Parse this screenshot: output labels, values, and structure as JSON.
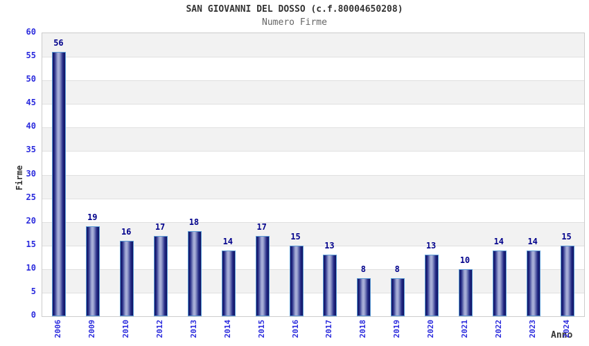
{
  "chart_data": {
    "type": "bar",
    "title": "SAN GIOVANNI DEL DOSSO (c.f.80004650208)",
    "subtitle": "Numero Firme",
    "xlabel": "Anno",
    "ylabel": "Firme",
    "categories": [
      "2006",
      "2009",
      "2010",
      "2012",
      "2013",
      "2014",
      "2015",
      "2016",
      "2017",
      "2018",
      "2019",
      "2020",
      "2021",
      "2022",
      "2023",
      "2024"
    ],
    "values": [
      56,
      19,
      16,
      17,
      18,
      14,
      17,
      15,
      13,
      8,
      8,
      13,
      10,
      14,
      14,
      15
    ],
    "ylim": [
      0,
      60
    ],
    "ytick_step": 5,
    "yticks": [
      0,
      5,
      10,
      15,
      20,
      25,
      30,
      35,
      40,
      45,
      50,
      55,
      60
    ],
    "grid": true,
    "legend_position": "none",
    "bar_value_labels_shown": true,
    "colors": {
      "bar_dark": "#0f1260",
      "bar_light": "#adb3da",
      "bar_border": "#5b9bd5",
      "value_label": "#00008b",
      "tick_label": "#2b2bdd",
      "axis_title": "#333333",
      "title": "#333333",
      "subtitle": "#666666",
      "band_stripe": "#f2f2f2",
      "gridline": "#e0e0e0",
      "plot_border": "#cccccc",
      "background": "#ffffff"
    }
  }
}
